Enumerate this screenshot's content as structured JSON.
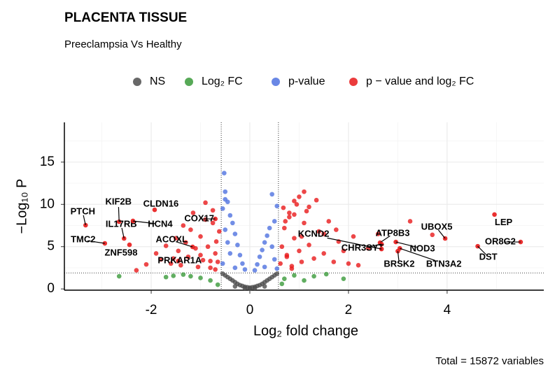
{
  "chart_data": {
    "type": "scatter",
    "title": "PLACENTA TISSUE",
    "subtitle": "Preeclampsia Vs Healthy",
    "x_label": "Log₂ fold change",
    "y_label": "−Log₁₀ P",
    "caption": "Total = 15872 variables",
    "xlim": [
      -3.76,
      5.96
    ],
    "ylim": [
      -0.15,
      19.7
    ],
    "xticks": [
      -2,
      0,
      2,
      4
    ],
    "yticks": [
      0,
      5,
      10,
      15
    ],
    "xminorticks": [
      -3,
      -1,
      1,
      3,
      5
    ],
    "yminorticks": [
      2.5,
      7.5,
      12.5,
      17.5
    ],
    "grid": true,
    "xcutoffs": [
      -0.58,
      0.58
    ],
    "ycutoff": 1.9,
    "series": [
      {
        "name": "NS",
        "color": "#4d4d4d",
        "x": [
          -0.5,
          -0.45,
          -0.4,
          -0.35,
          -0.3,
          -0.25,
          -0.2,
          -0.15,
          -0.1,
          -0.05,
          0,
          0.05,
          0.1,
          0.15,
          0.2,
          0.25,
          0.3,
          0.35,
          0.4,
          0.45,
          0.5,
          -0.3,
          -0.1,
          0.1,
          0.3,
          0,
          -0.55,
          0.55
        ],
        "y": [
          1.6,
          1.4,
          1.2,
          1.0,
          0.8,
          0.6,
          0.45,
          0.35,
          0.25,
          0.2,
          0.15,
          0.2,
          0.25,
          0.35,
          0.45,
          0.6,
          0.8,
          1.0,
          1.2,
          1.4,
          1.6,
          0.3,
          0.1,
          0.1,
          0.3,
          0.05,
          1.8,
          1.8
        ]
      },
      {
        "name": "Log₂ FC",
        "color": "#3a9a3a",
        "x": [
          -2.65,
          -1.7,
          -1.55,
          -1.2,
          -1.0,
          -0.8,
          -0.65,
          0.65,
          0.7,
          0.9,
          1.1,
          1.3,
          1.9,
          -1.35,
          1.55
        ],
        "y": [
          1.5,
          1.4,
          1.55,
          1.5,
          1.3,
          1.0,
          0.5,
          0.6,
          1.2,
          1.6,
          1.0,
          1.5,
          1.2,
          1.7,
          1.75
        ]
      },
      {
        "name": "p-value",
        "color": "#4f72e0",
        "x": [
          -0.52,
          -0.5,
          -0.45,
          -0.55,
          -0.4,
          -0.35,
          -0.3,
          -0.25,
          -0.2,
          -0.15,
          -0.1,
          -0.5,
          -0.45,
          -0.4,
          -0.55,
          0.1,
          0.15,
          0.2,
          0.25,
          0.3,
          0.35,
          0.4,
          0.5,
          0.55,
          0.45,
          0.5,
          0.55,
          -0.3,
          0.3,
          -0.5,
          0.45
        ],
        "y": [
          13.7,
          11.5,
          10.3,
          9.5,
          8.7,
          7.8,
          6.5,
          5.2,
          4.0,
          3.0,
          2.3,
          7.0,
          5.5,
          4.2,
          3.0,
          2.2,
          2.9,
          3.8,
          4.6,
          5.5,
          6.3,
          7.2,
          8.0,
          9.8,
          5.0,
          3.5,
          2.4,
          2.5,
          2.6,
          10.6,
          11.2
        ]
      },
      {
        "name": "p − value and log₂ FC",
        "color": "#e8191a",
        "x": [
          -1.9,
          -1.8,
          -1.7,
          -1.6,
          -1.5,
          -1.45,
          -1.4,
          -1.3,
          -1.25,
          -1.2,
          -1.1,
          -1.05,
          -1.0,
          -0.95,
          -0.9,
          -0.85,
          -0.8,
          -0.75,
          -0.7,
          -0.65,
          -0.62,
          -1.15,
          -1.35,
          -0.9,
          -0.75,
          -0.68,
          -1.0,
          -1.55,
          -2.1,
          -2.3,
          -0.7,
          -0.8,
          0.62,
          0.65,
          0.7,
          0.75,
          0.8,
          0.85,
          0.9,
          0.95,
          1.0,
          1.05,
          1.1,
          1.15,
          1.2,
          1.3,
          1.4,
          1.5,
          1.6,
          1.7,
          1.8,
          1.9,
          2.0,
          2.1,
          2.2,
          0.68,
          0.72,
          0.8,
          0.9,
          1.0,
          1.05,
          1.2,
          1.35,
          0.9,
          1.5,
          1.75,
          2.4,
          2.6,
          3.25,
          3.7,
          1.1,
          0.75,
          0.85
        ],
        "y": [
          4.2,
          3.5,
          5.1,
          3.0,
          6.0,
          4.5,
          2.8,
          5.5,
          3.8,
          7.0,
          4.8,
          2.6,
          6.2,
          3.4,
          8.2,
          5.0,
          2.5,
          9.3,
          4.2,
          3.2,
          6.8,
          9.0,
          7.5,
          10.2,
          7.8,
          5.6,
          4.0,
          3.6,
          2.9,
          2.2,
          2.3,
          3.3,
          3.0,
          5.0,
          7.2,
          4.0,
          8.5,
          2.7,
          6.0,
          10.0,
          4.5,
          3.2,
          7.8,
          9.2,
          5.2,
          3.6,
          6.8,
          4.2,
          8.0,
          3.2,
          5.6,
          4.5,
          3.0,
          6.2,
          2.8,
          9.6,
          8.0,
          9.0,
          10.4,
          10.9,
          6.2,
          9.7,
          10.5,
          8.8,
          6.5,
          7.0,
          4.8,
          6.5,
          8.0,
          6.4,
          11.5,
          3.8,
          2.4
        ]
      }
    ],
    "labels": [
      {
        "gene": "LEP",
        "x": 4.96,
        "y": 8.8
      },
      {
        "gene": "OR8G2",
        "x": 5.49,
        "y": 5.55
      },
      {
        "gene": "DST",
        "x": 4.62,
        "y": 5.05
      },
      {
        "gene": "UBOX5",
        "x": 3.96,
        "y": 5.97
      },
      {
        "gene": "BTN3A2",
        "x": 3.04,
        "y": 4.8
      },
      {
        "gene": "NOD3",
        "x": 2.96,
        "y": 5.55
      },
      {
        "gene": "BRSK2",
        "x": 3.0,
        "y": 4.47
      },
      {
        "gene": "ATP8B3",
        "x": 2.64,
        "y": 5.47
      },
      {
        "gene": "CHR3SYT",
        "x": 2.67,
        "y": 5.3
      },
      {
        "gene": "KCND2",
        "x": 2.67,
        "y": 4.72
      },
      {
        "gene": "PTCH",
        "x": -3.33,
        "y": 7.54
      },
      {
        "gene": "TMC2",
        "x": -2.94,
        "y": 5.39
      },
      {
        "gene": "KIF2B",
        "x": -2.65,
        "y": 7.95
      },
      {
        "gene": "IL17RB",
        "x": -2.55,
        "y": 5.97
      },
      {
        "gene": "ZNF598",
        "x": -2.44,
        "y": 5.22
      },
      {
        "gene": "HCN4",
        "x": -2.37,
        "y": 8.04
      },
      {
        "gene": "CLDN16",
        "x": -1.93,
        "y": 9.36
      },
      {
        "gene": "COX17",
        "x": -0.7,
        "y": 8.28
      },
      {
        "gene": "ACOXL",
        "x": -1.16,
        "y": 4.97
      },
      {
        "gene": "PRKAR1A",
        "x": -1.45,
        "y": 3.31
      }
    ],
    "label_color": "#e8191a"
  }
}
